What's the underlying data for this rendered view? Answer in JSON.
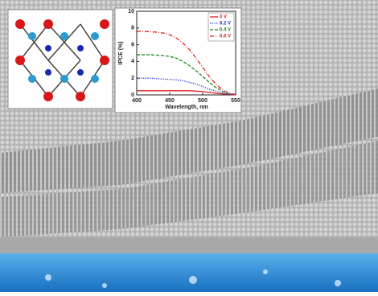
{
  "chart_data": {
    "type": "line",
    "xlabel": "Wavelength, nm",
    "ylabel": "IPCE (%)",
    "x": [
      400,
      410,
      420,
      430,
      440,
      450,
      460,
      470,
      480,
      490,
      500,
      510,
      520,
      530,
      540,
      550
    ],
    "series": [
      {
        "name": "0 V",
        "color": "#e02020",
        "dash": "solid",
        "values": [
          0.5,
          0.5,
          0.5,
          0.5,
          0.5,
          0.5,
          0.5,
          0.5,
          0.5,
          0.45,
          0.4,
          0.3,
          0.2,
          0.12,
          0.06,
          0.02
        ]
      },
      {
        "name": "0.2 V",
        "color": "#2030d0",
        "dash": "dotted",
        "values": [
          2.0,
          2.0,
          2.0,
          1.95,
          1.9,
          1.85,
          1.8,
          1.7,
          1.5,
          1.3,
          1.0,
          0.7,
          0.45,
          0.25,
          0.1,
          0.05
        ]
      },
      {
        "name": "0.4 V",
        "color": "#1a8a1a",
        "dash": "dashed",
        "values": [
          4.8,
          4.8,
          4.8,
          4.75,
          4.7,
          4.6,
          4.4,
          4.0,
          3.5,
          2.9,
          2.2,
          1.5,
          0.9,
          0.4,
          0.15,
          0.05
        ]
      },
      {
        "name": "0.6 V",
        "color": "#e02020",
        "dash": "dashdot",
        "values": [
          7.6,
          7.6,
          7.55,
          7.5,
          7.4,
          7.2,
          6.8,
          6.2,
          5.4,
          4.4,
          3.3,
          2.2,
          1.3,
          0.6,
          0.2,
          0.05
        ]
      }
    ],
    "xlim": [
      400,
      550
    ],
    "xticks": [
      400,
      450,
      500,
      550
    ],
    "ylim": [
      0,
      10
    ],
    "yticks": [
      0,
      2,
      4,
      6,
      8,
      10
    ],
    "legend": "upper right"
  }
}
